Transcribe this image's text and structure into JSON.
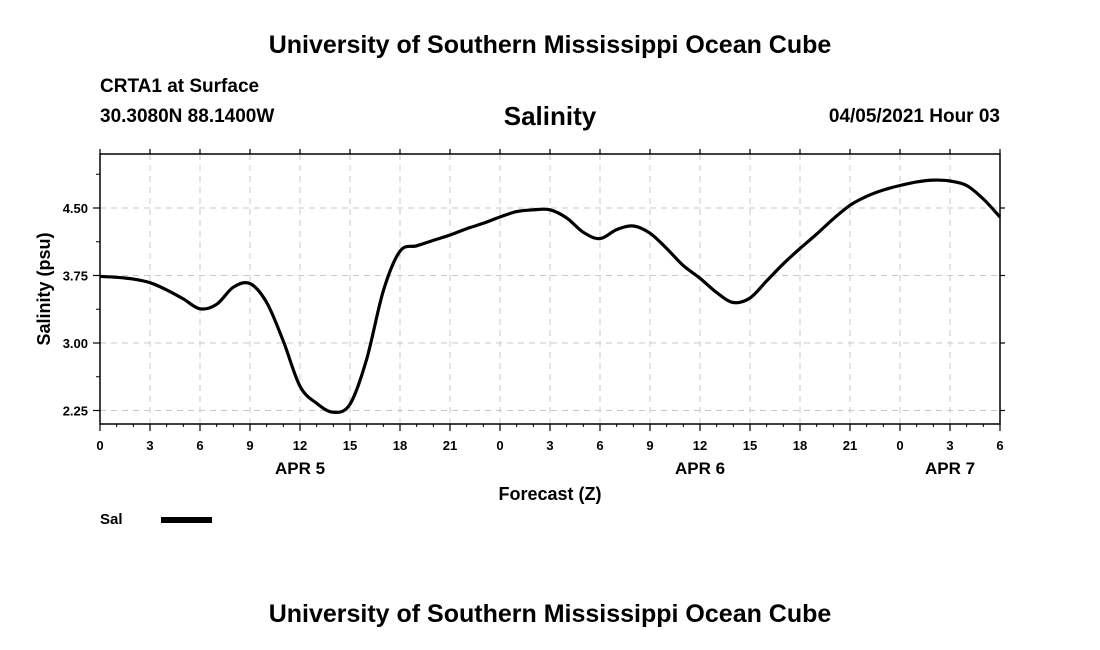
{
  "header": {
    "title": "University of Southern Mississippi Ocean Cube",
    "station": "CRTA1 at Surface",
    "coordinates": "30.3080N  88.1400W",
    "parameter": "Salinity",
    "datetime": "04/05/2021 Hour 03"
  },
  "footer": {
    "title": "University of Southern Mississippi Ocean Cube"
  },
  "chart_data": {
    "type": "line",
    "title": "Salinity",
    "xlabel": "Forecast (Z)",
    "ylabel": "Salinity (psu)",
    "xlim": [
      0,
      54
    ],
    "ylim": [
      2.1,
      5.1
    ],
    "yticks": [
      2.25,
      3.0,
      3.75,
      4.5
    ],
    "ytick_labels": [
      "2.25",
      "3.00",
      "3.75",
      "4.50"
    ],
    "xticks": [
      0,
      3,
      6,
      9,
      12,
      15,
      18,
      21,
      24,
      27,
      30,
      33,
      36,
      39,
      42,
      45,
      48,
      51,
      54
    ],
    "xtick_labels": [
      "0",
      "3",
      "6",
      "9",
      "12",
      "15",
      "18",
      "21",
      "0",
      "3",
      "6",
      "9",
      "12",
      "15",
      "18",
      "21",
      "0",
      "3",
      "6"
    ],
    "date_labels": [
      {
        "x": 12,
        "label": "APR 5"
      },
      {
        "x": 36,
        "label": "APR 6"
      },
      {
        "x": 51,
        "label": "APR 7"
      }
    ],
    "grid": true,
    "series": [
      {
        "name": "Sal",
        "color": "#000000",
        "x": [
          0,
          1,
          2,
          3,
          4,
          5,
          6,
          7,
          8,
          9,
          10,
          11,
          12,
          13,
          14,
          15,
          16,
          17,
          18,
          19,
          20,
          21,
          22,
          23,
          24,
          25,
          26,
          27,
          28,
          29,
          30,
          31,
          32,
          33,
          34,
          35,
          36,
          37,
          38,
          39,
          40,
          41,
          42,
          43,
          44,
          45,
          46,
          47,
          48,
          49,
          50,
          51,
          52,
          53,
          54
        ],
        "y": [
          3.74,
          3.73,
          3.71,
          3.67,
          3.59,
          3.49,
          3.38,
          3.43,
          3.62,
          3.66,
          3.45,
          3.02,
          2.52,
          2.33,
          2.23,
          2.32,
          2.82,
          3.58,
          4.02,
          4.08,
          4.14,
          4.2,
          4.27,
          4.33,
          4.4,
          4.46,
          4.48,
          4.48,
          4.39,
          4.23,
          4.16,
          4.26,
          4.3,
          4.22,
          4.05,
          3.86,
          3.72,
          3.56,
          3.45,
          3.5,
          3.69,
          3.88,
          4.05,
          4.21,
          4.38,
          4.53,
          4.63,
          4.7,
          4.75,
          4.79,
          4.81,
          4.8,
          4.75,
          4.6,
          4.4
        ]
      }
    ],
    "legend": {
      "entries": [
        "Sal"
      ],
      "placement": "bottom-left"
    }
  }
}
